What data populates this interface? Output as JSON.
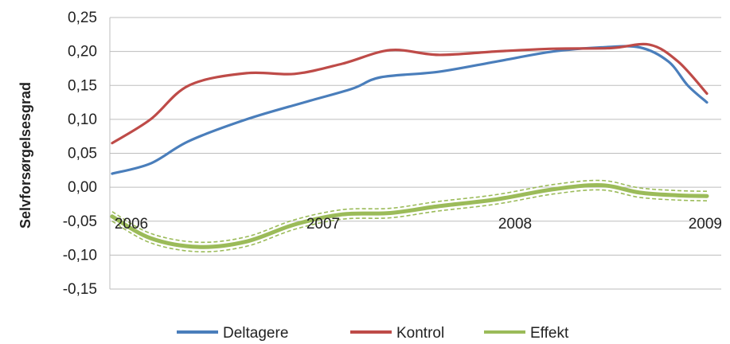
{
  "chart_data": {
    "type": "line",
    "title": "",
    "xlabel": "",
    "ylabel": "Selvforsørgelsesgrad",
    "x_ticks": [
      {
        "label": "2006",
        "x": 0
      },
      {
        "label": "2007",
        "x": 1
      },
      {
        "label": "2008",
        "x": 2
      },
      {
        "label": "2009",
        "x": 3
      }
    ],
    "xlim": [
      -0.1,
      3.0
    ],
    "ylim": [
      -0.15,
      0.25
    ],
    "y_ticks": [
      {
        "value": 0.25,
        "label": "0,25"
      },
      {
        "value": 0.2,
        "label": "0,20"
      },
      {
        "value": 0.15,
        "label": "0,15"
      },
      {
        "value": 0.1,
        "label": "0,10"
      },
      {
        "value": 0.05,
        "label": "0,05"
      },
      {
        "value": 0.0,
        "label": "0,00"
      },
      {
        "value": -0.05,
        "label": "-0,05"
      },
      {
        "value": -0.1,
        "label": "-0,10"
      },
      {
        "value": -0.15,
        "label": "-0,15"
      }
    ],
    "grid": true,
    "legend_position": "bottom",
    "series": [
      {
        "name": "Deltagere",
        "color": "#4a7ebb",
        "points": [
          [
            -0.1,
            0.02
          ],
          [
            0.1,
            0.035
          ],
          [
            0.3,
            0.068
          ],
          [
            0.6,
            0.1
          ],
          [
            0.9,
            0.125
          ],
          [
            1.15,
            0.145
          ],
          [
            1.3,
            0.162
          ],
          [
            1.6,
            0.17
          ],
          [
            1.9,
            0.185
          ],
          [
            2.2,
            0.2
          ],
          [
            2.45,
            0.206
          ],
          [
            2.65,
            0.206
          ],
          [
            2.8,
            0.185
          ],
          [
            2.9,
            0.15
          ],
          [
            3.0,
            0.125
          ]
        ]
      },
      {
        "name": "Kontrol",
        "color": "#be4b48",
        "points": [
          [
            -0.1,
            0.065
          ],
          [
            0.1,
            0.1
          ],
          [
            0.3,
            0.15
          ],
          [
            0.6,
            0.168
          ],
          [
            0.85,
            0.167
          ],
          [
            1.1,
            0.182
          ],
          [
            1.35,
            0.202
          ],
          [
            1.6,
            0.195
          ],
          [
            1.9,
            0.2
          ],
          [
            2.2,
            0.204
          ],
          [
            2.5,
            0.205
          ],
          [
            2.7,
            0.21
          ],
          [
            2.85,
            0.185
          ],
          [
            3.0,
            0.138
          ]
        ]
      },
      {
        "name": "Effekt",
        "color": "#9bbb59",
        "points": [
          [
            -0.1,
            -0.043
          ],
          [
            0.1,
            -0.075
          ],
          [
            0.35,
            -0.088
          ],
          [
            0.6,
            -0.08
          ],
          [
            0.85,
            -0.055
          ],
          [
            1.1,
            -0.04
          ],
          [
            1.35,
            -0.038
          ],
          [
            1.6,
            -0.028
          ],
          [
            1.9,
            -0.018
          ],
          [
            2.2,
            -0.003
          ],
          [
            2.45,
            0.003
          ],
          [
            2.65,
            -0.008
          ],
          [
            2.85,
            -0.012
          ],
          [
            3.0,
            -0.013
          ]
        ],
        "band": 0.007
      }
    ]
  }
}
